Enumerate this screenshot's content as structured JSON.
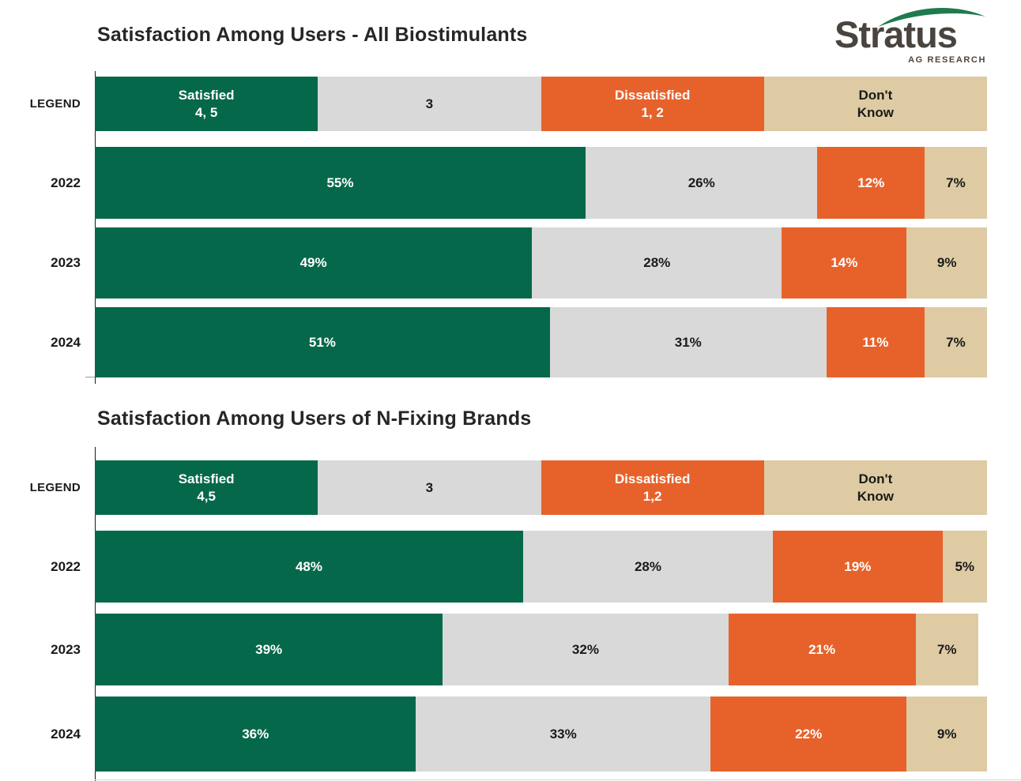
{
  "logo": {
    "brand": "Stratus",
    "sub": "AG RESEARCH"
  },
  "colors": {
    "satisfied_green": "#06684B",
    "neutral_gray": "#D9D9D9",
    "dissatisfied_orange": "#E7622B",
    "dont_know_tan": "#DECBA4",
    "title_text": "#262626",
    "logo_text": "#4A443E",
    "logo_arc_green": "#1F7B4D"
  },
  "charts": [
    {
      "title": "Satisfaction Among Users - All Biostimulants",
      "legend_label": "LEGEND",
      "legend": [
        {
          "line1": "Satisfied",
          "line2": "4, 5",
          "pct": 25
        },
        {
          "line1": "3",
          "line2": "",
          "pct": 25
        },
        {
          "line1": "Dissatisfied",
          "line2": "1, 2",
          "pct": 25
        },
        {
          "line1": "Don't",
          "line2": "Know",
          "pct": 25
        }
      ],
      "rows": [
        {
          "year": "2022",
          "segments": [
            {
              "label": "55%",
              "pct": 55
            },
            {
              "label": "26%",
              "pct": 26
            },
            {
              "label": "12%",
              "pct": 12
            },
            {
              "label": "7%",
              "pct": 7
            }
          ]
        },
        {
          "year": "2023",
          "segments": [
            {
              "label": "49%",
              "pct": 49
            },
            {
              "label": "28%",
              "pct": 28
            },
            {
              "label": "14%",
              "pct": 14
            },
            {
              "label": "9%",
              "pct": 9
            }
          ]
        },
        {
          "year": "2024",
          "segments": [
            {
              "label": "51%",
              "pct": 51
            },
            {
              "label": "31%",
              "pct": 31
            },
            {
              "label": "11%",
              "pct": 11
            },
            {
              "label": "7%",
              "pct": 7
            }
          ]
        }
      ]
    },
    {
      "title": "Satisfaction Among Users of N-Fixing Brands",
      "legend_label": "LEGEND",
      "legend": [
        {
          "line1": "Satisfied",
          "line2": "4,5",
          "pct": 25
        },
        {
          "line1": "3",
          "line2": "",
          "pct": 25
        },
        {
          "line1": "Dissatisfied",
          "line2": "1,2",
          "pct": 25
        },
        {
          "line1": "Don't",
          "line2": "Know",
          "pct": 25
        }
      ],
      "rows": [
        {
          "year": "2022",
          "segments": [
            {
              "label": "48%",
              "pct": 48
            },
            {
              "label": "28%",
              "pct": 28
            },
            {
              "label": "19%",
              "pct": 19
            },
            {
              "label": "5%",
              "pct": 5
            }
          ]
        },
        {
          "year": "2023",
          "segments": [
            {
              "label": "39%",
              "pct": 39
            },
            {
              "label": "32%",
              "pct": 32
            },
            {
              "label": "21%",
              "pct": 21
            },
            {
              "label": "7%",
              "pct": 7
            }
          ]
        },
        {
          "year": "2024",
          "segments": [
            {
              "label": "36%",
              "pct": 36
            },
            {
              "label": "33%",
              "pct": 33
            },
            {
              "label": "22%",
              "pct": 22
            },
            {
              "label": "9%",
              "pct": 9
            }
          ]
        }
      ]
    }
  ],
  "chart_data": [
    {
      "type": "bar",
      "subtype": "stacked-horizontal",
      "title": "Satisfaction Among Users - All Biostimulants",
      "categories": [
        "2022",
        "2023",
        "2024"
      ],
      "series": [
        {
          "name": "Satisfied 4, 5",
          "values": [
            55,
            49,
            51
          ],
          "color": "#06684B"
        },
        {
          "name": "3",
          "values": [
            26,
            28,
            31
          ],
          "color": "#D9D9D9"
        },
        {
          "name": "Dissatisfied 1, 2",
          "values": [
            12,
            14,
            11
          ],
          "color": "#E7622B"
        },
        {
          "name": "Don't Know",
          "values": [
            7,
            9,
            7
          ],
          "color": "#DECBA4"
        }
      ],
      "unit": "%",
      "xlim": [
        0,
        100
      ],
      "grid": false,
      "legend_position": "top-row-labeled-LEGEND"
    },
    {
      "type": "bar",
      "subtype": "stacked-horizontal",
      "title": "Satisfaction Among Users of N-Fixing Brands",
      "categories": [
        "2022",
        "2023",
        "2024"
      ],
      "series": [
        {
          "name": "Satisfied 4,5",
          "values": [
            48,
            39,
            36
          ],
          "color": "#06684B"
        },
        {
          "name": "3",
          "values": [
            28,
            32,
            33
          ],
          "color": "#D9D9D9"
        },
        {
          "name": "Dissatisfied 1,2",
          "values": [
            19,
            21,
            22
          ],
          "color": "#E7622B"
        },
        {
          "name": "Don't Know",
          "values": [
            5,
            7,
            9
          ],
          "color": "#DECBA4"
        }
      ],
      "unit": "%",
      "xlim": [
        0,
        100
      ],
      "grid": false,
      "legend_position": "top-row-labeled-LEGEND"
    }
  ]
}
